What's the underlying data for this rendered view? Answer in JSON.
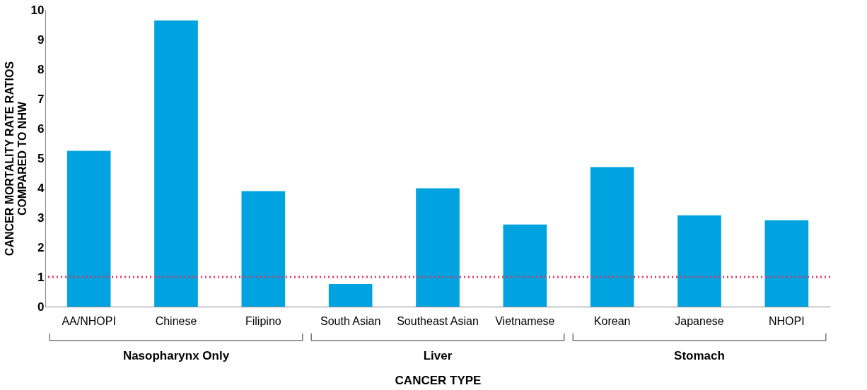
{
  "chart_data": {
    "type": "bar",
    "xlabel": "CANCER TYPE",
    "ylabel": "CANCER MORTALITY RATE RATIOS COMPARED TO NHW",
    "categories": [
      "AA/NHOPI",
      "Chinese",
      "Filipino",
      "South Asian",
      "Southeast Asian",
      "Vietnamese",
      "Korean",
      "Japanese",
      "NHOPI"
    ],
    "values": [
      5.25,
      9.64,
      3.89,
      0.76,
      3.99,
      2.77,
      4.7,
      3.08,
      2.91
    ],
    "color": "#00a3e0",
    "ylim": [
      0,
      10
    ],
    "yticks": [
      0,
      1,
      2,
      3,
      4,
      5,
      6,
      7,
      8,
      9,
      10
    ],
    "grid": false,
    "ref_lines": [
      {
        "axis": "y",
        "value": 1,
        "color": "#e8365d",
        "line_style": "dotted"
      }
    ],
    "annotations": [
      "Nasopharynx Only",
      "Liver",
      "Stomach"
    ]
  }
}
